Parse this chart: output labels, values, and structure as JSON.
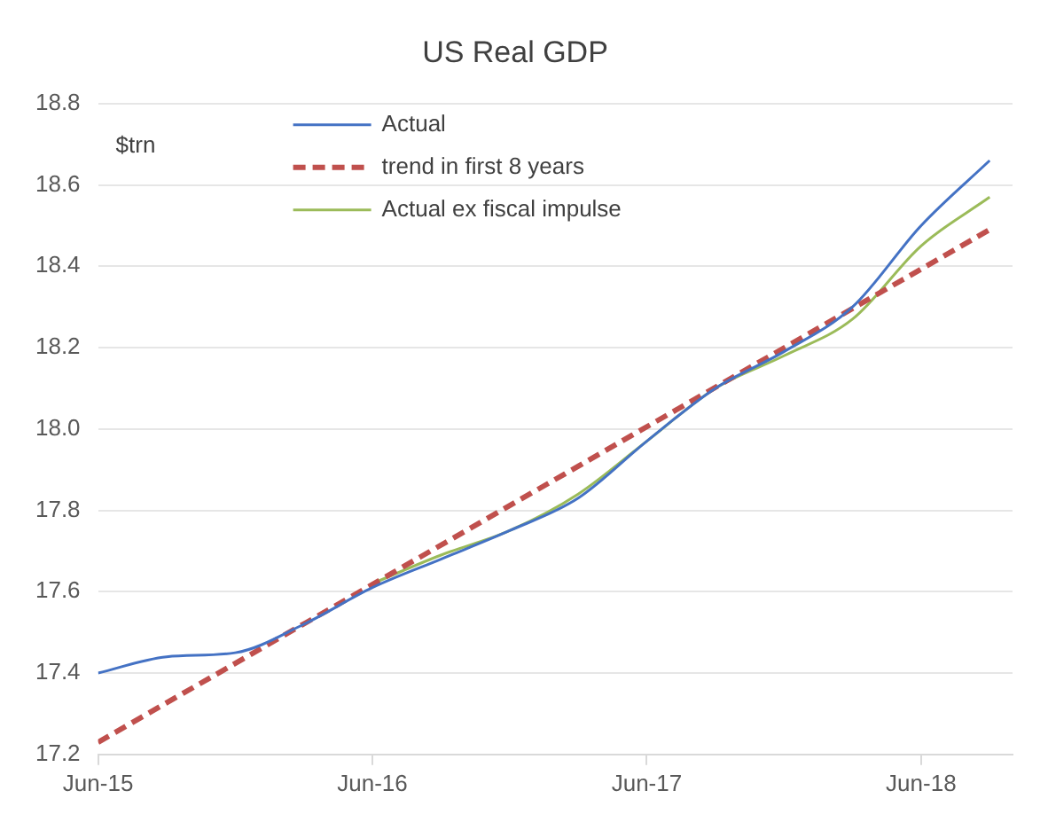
{
  "chart_data": {
    "type": "line",
    "title": "US Real GDP",
    "ylabel": "$trn",
    "x": [
      "2015-06",
      "2015-09",
      "2015-12",
      "2016-03",
      "2016-06",
      "2016-09",
      "2016-12",
      "2017-03",
      "2017-06",
      "2017-09",
      "2017-12",
      "2018-03",
      "2018-06",
      "2018-09"
    ],
    "series": [
      {
        "name": "Actual",
        "color": "#4472c4",
        "values": [
          17.4,
          17.44,
          17.45,
          17.52,
          17.61,
          17.68,
          17.75,
          17.83,
          17.97,
          18.1,
          18.19,
          18.3,
          18.5,
          18.66
        ]
      },
      {
        "name": "trend in first 8 years",
        "color": "#c0504d",
        "line_style": "dashed",
        "x": [
          "2015-06",
          "2018-09"
        ],
        "values": [
          17.23,
          18.49
        ]
      },
      {
        "name": "Actual ex fiscal impulse",
        "color": "#9bbb59",
        "x": [
          "2016-06",
          "2016-09",
          "2016-12",
          "2017-03",
          "2017-06",
          "2017-09",
          "2017-12",
          "2018-03",
          "2018-06",
          "2018-09"
        ],
        "values": [
          17.62,
          17.69,
          17.75,
          17.84,
          17.97,
          18.1,
          18.18,
          18.27,
          18.45,
          18.57
        ]
      }
    ],
    "xlim": [
      "2015-06",
      "2018-10"
    ],
    "xticks": [
      {
        "value": "2015-06",
        "label": "Jun-15"
      },
      {
        "value": "2016-06",
        "label": "Jun-16"
      },
      {
        "value": "2017-06",
        "label": "Jun-17"
      },
      {
        "value": "2018-06",
        "label": "Jun-18"
      }
    ],
    "ylim": [
      17.2,
      18.8
    ],
    "yticks": [
      17.2,
      17.4,
      17.6,
      17.8,
      {
        "value": 18,
        "label": "18.0"
      },
      18.2,
      18.4,
      18.6,
      18.8
    ],
    "grid": "y",
    "legend": "top",
    "marker": "none",
    "line_style": "solid"
  }
}
